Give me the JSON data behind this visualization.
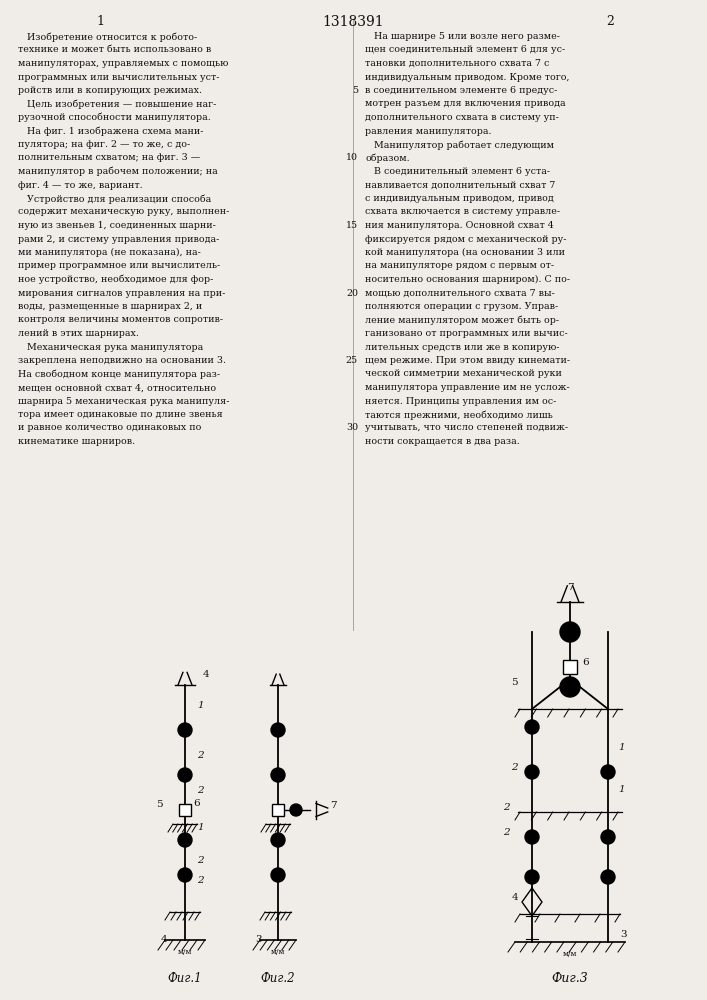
{
  "page_width": 7.07,
  "page_height": 10.0,
  "bg_color": "#f0ede8",
  "text_color": "#111111",
  "header": "1318391",
  "col1_header": "1",
  "col2_header": "2",
  "col1_text": [
    "   Изобретение относится к робото-",
    "технике и может быть использовано в",
    "манипуляторах, управляемых с помощью",
    "программных или вычислительных уст-",
    "ройств или в копирующих режимах.",
    "   Цель изобретения — повышение наг-",
    "рузочной способности манипулятора.",
    "   На фиг. 1 изображена схема мани-",
    "пулятора; на фиг. 2 — то же, с до-",
    "полнительным схватом; на фиг. 3 —",
    "манипулятор в рабочем положении; на",
    "фиг. 4 — то же, вариант.",
    "   Устройство для реализации способа",
    "содержит механическую руку, выполнен-",
    "ную из звеньев 1, соединенных шарни-",
    "рами 2, и систему управления привода-",
    "ми манипулятора (не показана), на-",
    "пример программное или вычислитель-",
    "ное устройство, необходимое для фор-",
    "мирования сигналов управления на при-",
    "воды, размещенные в шарнирах 2, и",
    "контроля величины моментов сопротив-",
    "лений в этих шарнирах.",
    "   Механическая рука манипулятора",
    "закреплена неподвижно на основании 3.",
    "На свободном конце манипулятора раз-",
    "мещен основной схват 4, относительно",
    "шарнира 5 механическая рука манипуля-",
    "тора имеет одинаковые по длине звенья",
    "и равное количество одинаковых по",
    "кинематике шарниров."
  ],
  "col2_text": [
    "   На шарнире 5 или возле него разме-",
    "щен соединительный элемент 6 для ус-",
    "тановки дополнительного схвата 7 с",
    "индивидуальным приводом. Кроме того,",
    "в соединительном элементе 6 предус-",
    "мотрен разъем для включения привода",
    "дополнительного схвата в систему уп-",
    "равления манипулятора.",
    "   Манипулятор работает следующим",
    "образом.",
    "   В соединительный элемент 6 уста-",
    "навливается дополнительный схват 7",
    "с индивидуальным приводом, привод",
    "схвата включается в систему управле-",
    "ния манипулятора. Основной схват 4",
    "фиксируется рядом с механической ру-",
    "кой манипулятора (на основании 3 или",
    "на манипуляторе рядом с первым от-",
    "носительно основания шарниром). С по-",
    "мощью дополнительного схвата 7 вы-",
    "полняются операции с грузом. Управ-",
    "ление манипулятором может быть ор-",
    "ганизовано от программных или вычис-",
    "лительных средств или же в копирую-",
    "щем режиме. При этом ввиду кинемати-",
    "ческой симметрии механической руки",
    "манипулятора управление им не услож-",
    "няется. Принципы управления им ос-",
    "таются прежними, необходимо лишь",
    "учитывать, что число степеней подвиж-",
    "ности сокращается в два раза."
  ],
  "line_numbers_rows": [
    4,
    9,
    14,
    19,
    24,
    29
  ],
  "line_numbers_vals": [
    5,
    10,
    15,
    20,
    25,
    30
  ],
  "fig1_label": "Фиг.1",
  "fig2_label": "Фиг.2",
  "fig3_label": "Фиг.3"
}
